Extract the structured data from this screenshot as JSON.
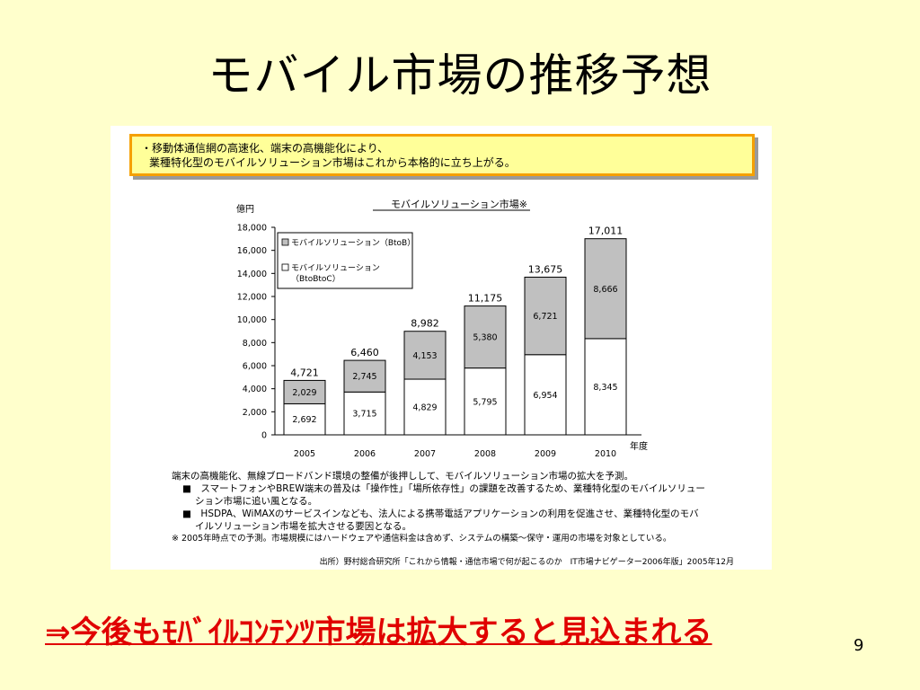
{
  "slide": {
    "title": "モバイル市場の推移予想",
    "conclusion": "⇒今後もﾓﾊﾞｲﾙｺﾝﾃﾝﾂ市場は拡大すると見込まれる",
    "page_number": "9"
  },
  "callout": {
    "line1": "・移動体通信網の高速化、端末の高機能化により、",
    "line2": "業種特化型のモバイルソリューション市場はこれから本格的に立ち上がる。"
  },
  "notes": {
    "lead": "端末の高機能化、無線ブロードバンド環境の整備が後押しして、モバイルソリューション市場の拡大を予測。",
    "bullet1": "■　スマートフォンやBREW端末の普及は「操作性」「場所依存性」の課題を改善するため、業種特化型のモバイルソリュー",
    "bullet1_cont": "ション市場に追い風となる。",
    "bullet2": "■　HSDPA、WiMAXのサービスインなども、法人による携帯電話アプリケーションの利用を促進させ、業種特化型のモバ",
    "bullet2_cont": "イルソリューション市場を拡大させる要因となる。",
    "footnote": "※ 2005年時点での予測。市場規模にはハードウェアや通信料金は含めず、システムの構築～保守・運用の市場を対象としている。",
    "source": "出所）野村総合研究所「これから情報・通信市場で何が起こるのか　IT市場ナビゲーター2006年版」2005年12月"
  },
  "chart_data": {
    "type": "bar",
    "stacked": true,
    "title": "モバイルソリューション市場※",
    "ylabel": "億円",
    "xlabel": "年度",
    "categories": [
      "2005",
      "2006",
      "2007",
      "2008",
      "2009",
      "2010"
    ],
    "ylim": [
      0,
      18000
    ],
    "yticks": [
      "0",
      "2,000",
      "4,000",
      "6,000",
      "8,000",
      "10,000",
      "12,000",
      "14,000",
      "16,000",
      "18,000"
    ],
    "series": [
      {
        "name": "モバイルソリューション（BtoBtoC）",
        "color": "#ffffff",
        "values": [
          2692,
          3715,
          4829,
          5795,
          6954,
          8345
        ],
        "labels": [
          "2,692",
          "3,715",
          "4,829",
          "5,795",
          "6,954",
          "8,345"
        ]
      },
      {
        "name": "モバイルソリューション（BtoB）",
        "color": "#c0c0c0",
        "values": [
          2029,
          2745,
          4153,
          5380,
          6721,
          8666
        ],
        "labels": [
          "2,029",
          "2,745",
          "4,153",
          "5,380",
          "6,721",
          "8,666"
        ]
      }
    ],
    "totals": [
      4721,
      6460,
      8982,
      11175,
      13675,
      17011
    ],
    "total_labels": [
      "4,721",
      "6,460",
      "8,982",
      "11,175",
      "13,675",
      "17,011"
    ],
    "legend": {
      "position": "top-left",
      "entry1": "モバイルソリューション（BtoB）",
      "entry2_line1": "モバイルソリューション",
      "entry2_line2": "（BtoBtoC）"
    },
    "grid": false
  }
}
